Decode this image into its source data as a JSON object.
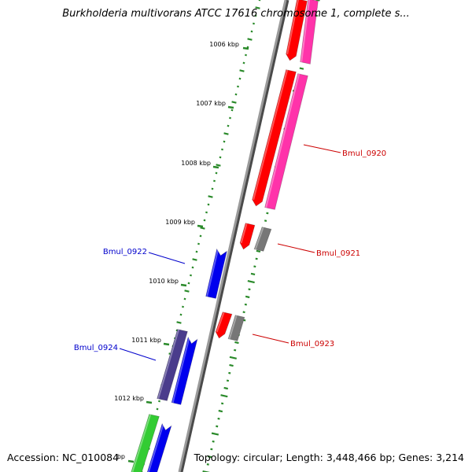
{
  "map_title": "Burkholderia multivorans ATCC 17616 chromosome 1, complete s...",
  "accession_text": "Accession: NC_010084",
  "summary_text": "Topology: circular; Length: 3,448,466 bp; Genes: 3,214",
  "scale_ticks": [
    {
      "label": "1006 kbp"
    },
    {
      "label": "1007 kbp"
    },
    {
      "label": "1008 kbp"
    },
    {
      "label": "1009 kbp"
    },
    {
      "label": "1010 kbp"
    },
    {
      "label": "1011 kbp"
    },
    {
      "label": "1012 kbp"
    },
    {
      "label": "bp"
    }
  ],
  "gene_labels": [
    {
      "name": "Bmul_0920",
      "strand": "reverse",
      "color": "#cc0000"
    },
    {
      "name": "Bmul_0921",
      "strand": "reverse",
      "color": "#cc0000"
    },
    {
      "name": "Bmul_0923",
      "strand": "reverse",
      "color": "#cc0000"
    },
    {
      "name": "Bmul_0922",
      "strand": "forward",
      "color": "#0000cc"
    },
    {
      "name": "Bmul_0924",
      "strand": "forward",
      "color": "#0000cc"
    }
  ],
  "feature_colors": {
    "forward_cds": "#0000ee",
    "reverse_cds": "#ff0000",
    "gene_pink": "#ff33aa",
    "gene_gray": "#777777",
    "gene_purple": "#4a3c8c",
    "gene_green": "#33cc33",
    "backbone": "#8a8a8a",
    "tick_green": "#2a8a2a"
  }
}
